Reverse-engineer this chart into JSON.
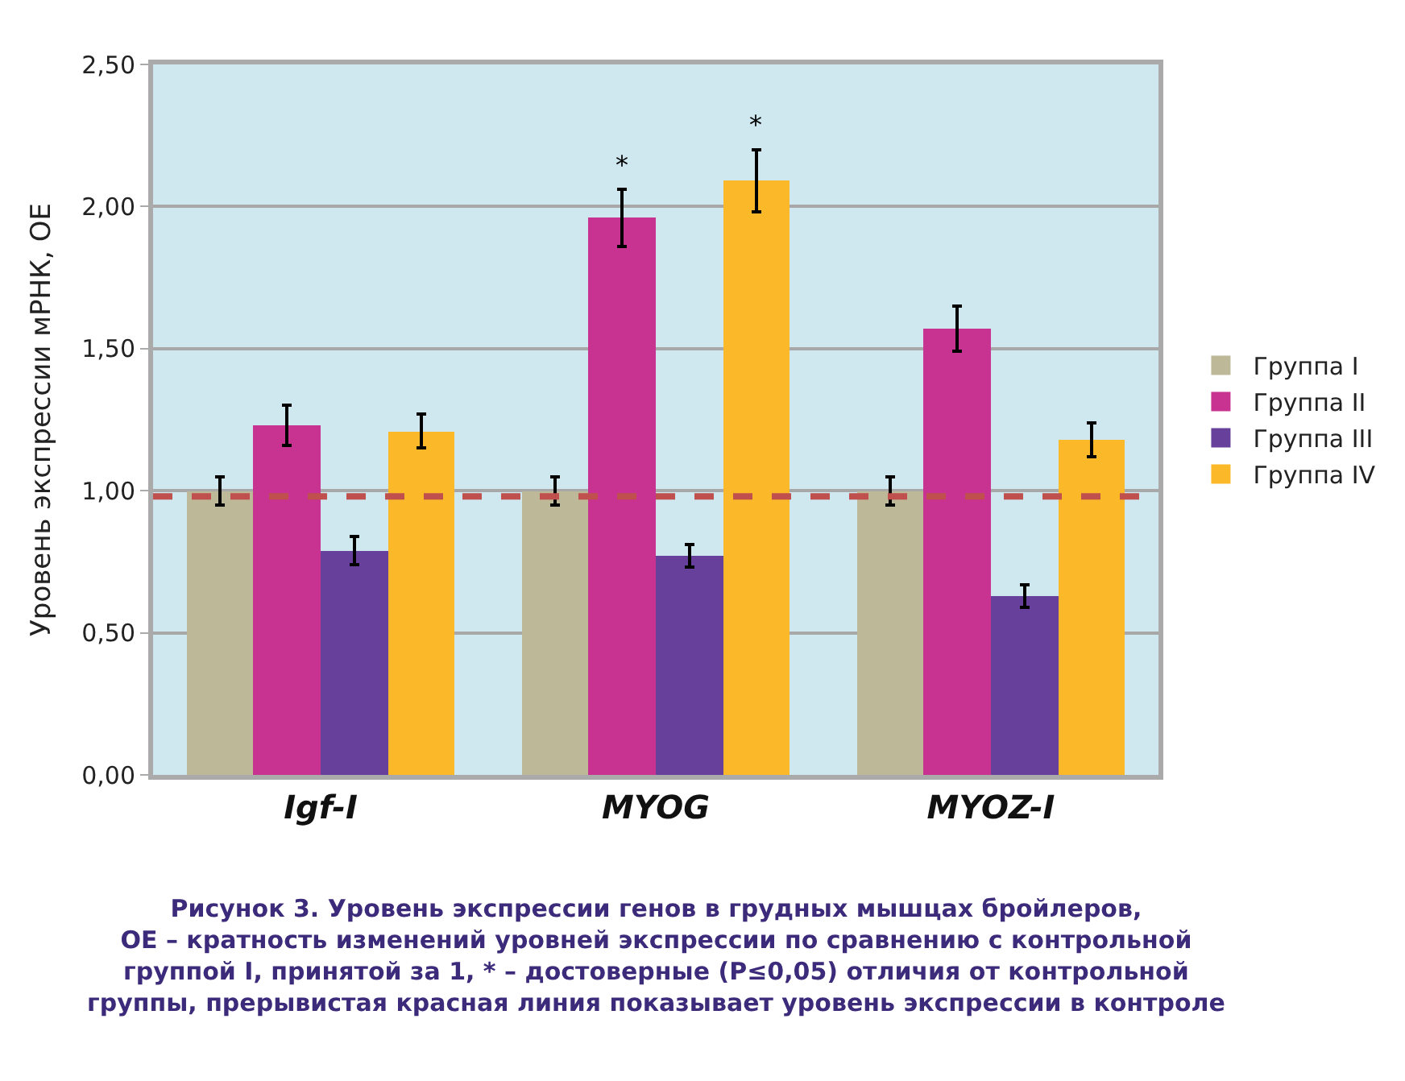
{
  "chart_data": {
    "type": "bar",
    "ylabel": "Уровень экспрессии мРНК, ОЕ",
    "categories": [
      "Igf-I",
      "MYOG",
      "MYOZ-I"
    ],
    "series": [
      {
        "name": "Группа I",
        "color": "#bdb898",
        "values": [
          1.0,
          1.0,
          1.0
        ],
        "errors": [
          0.05,
          0.05,
          0.05
        ]
      },
      {
        "name": "Группа II",
        "color": "#c83291",
        "values": [
          1.23,
          1.96,
          1.57
        ],
        "value_labels": [
          null,
          "*",
          null
        ],
        "errors": [
          0.07,
          0.1,
          0.08
        ]
      },
      {
        "name": "Группа III",
        "color": "#66409a",
        "values": [
          0.79,
          0.77,
          0.63
        ],
        "errors": [
          0.05,
          0.04,
          0.04
        ]
      },
      {
        "name": "Группа IV",
        "color": "#fbb829",
        "values": [
          1.21,
          2.09,
          1.18
        ],
        "value_labels": [
          null,
          "*",
          null
        ],
        "errors": [
          0.06,
          0.11,
          0.06
        ]
      }
    ],
    "ylim": [
      0,
      2.5
    ],
    "yticks": [
      {
        "value": 0,
        "label": "0,00"
      },
      {
        "value": 0.5,
        "label": "0,50"
      },
      {
        "value": 1.0,
        "label": "1,00"
      },
      {
        "value": 1.5,
        "label": "1,50"
      },
      {
        "value": 2.0,
        "label": "2,00"
      },
      {
        "value": 2.5,
        "label": "2,50"
      }
    ],
    "grid": "y",
    "legend": "right",
    "ref_lines": [
      {
        "axis": "y",
        "value": 0.98,
        "color": "#c0504d",
        "line_style": "dashed"
      }
    ],
    "annotations": [
      "Рисунок 3. Уровень экспрессии генов в грудных мышцах бройлеров,\nОЕ – кратность изменений уровней экспрессии по сравнению с контрольной\nгруппой I, принятой за 1, * – достоверные (P≤0,05) отличия от контрольной\nгруппы, прерывистая красная линия показывает уровень экспрессии в контроле"
    ]
  }
}
